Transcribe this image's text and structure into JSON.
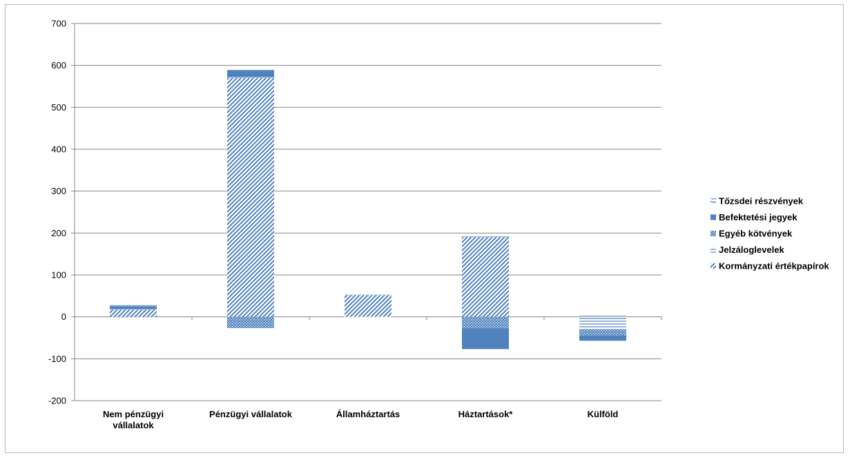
{
  "chart_data": {
    "type": "bar",
    "stacked": true,
    "title": "",
    "xlabel": "",
    "ylabel": "",
    "ylim": [
      -200,
      700
    ],
    "yticks": [
      -200,
      -100,
      0,
      100,
      200,
      300,
      400,
      500,
      600,
      700
    ],
    "grid": true,
    "legend_position": "right",
    "categories": [
      [
        "Nem pénzügyi",
        "vállalatok"
      ],
      [
        "Pénzügyi vállalatok"
      ],
      [
        "Államháztartás"
      ],
      [
        "Háztartások*"
      ],
      [
        "Külföld"
      ]
    ],
    "series": [
      {
        "name": "Kormányzati értékpapírok",
        "pattern": "diagonal-stripes",
        "color": "#4f81bd",
        "values": [
          17,
          570,
          52,
          190,
          0
        ]
      },
      {
        "name": "Jelzáloglevelek",
        "pattern": "horizontal-lines",
        "color": "#4f81bd",
        "values": [
          1,
          2,
          -2,
          0,
          -30
        ]
      },
      {
        "name": "Egyéb kötvények",
        "pattern": "dots",
        "color": "#4f81bd",
        "values": [
          0,
          -27,
          0,
          -27,
          -15
        ]
      },
      {
        "name": "Befektetési jegyek",
        "pattern": "solid",
        "color": "#4f81bd",
        "values": [
          7,
          17,
          0,
          -50,
          -12
        ]
      },
      {
        "name": "Tőzsdei részvények",
        "pattern": "waves",
        "color": "#4f81bd",
        "values": [
          3,
          3,
          1,
          2,
          3
        ]
      }
    ],
    "legend_order": [
      "Tőzsdei részvények",
      "Befektetési jegyek",
      "Egyéb kötvények",
      "Jelzáloglevelek",
      "Kormányzati értékpapírok"
    ]
  }
}
